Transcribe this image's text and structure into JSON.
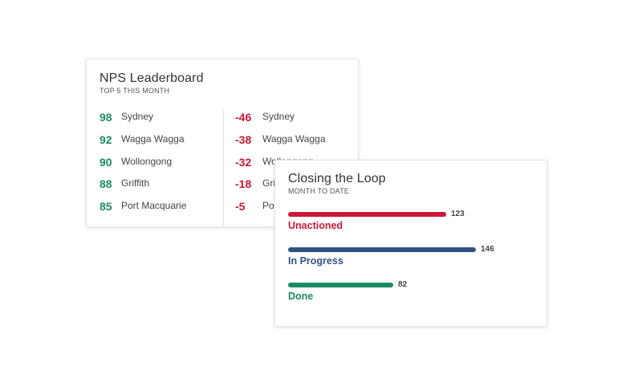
{
  "leaderboard": {
    "title": "NPS Leaderboard",
    "subtitle": "TOP 5 THIS MONTH",
    "top": [
      {
        "score": "98",
        "city": "Sydney"
      },
      {
        "score": "92",
        "city": "Wagga Wagga"
      },
      {
        "score": "90",
        "city": "Wollongong"
      },
      {
        "score": "88",
        "city": "Griffith"
      },
      {
        "score": "85",
        "city": "Port Macquarie"
      }
    ],
    "bottom": [
      {
        "score": "-46",
        "city": "Sydney"
      },
      {
        "score": "-38",
        "city": "Wagga Wagga"
      },
      {
        "score": "-32",
        "city": "Wollongong"
      },
      {
        "score": "-18",
        "city": "Griffith"
      },
      {
        "score": "-5",
        "city": "Port Macquarie"
      }
    ],
    "colors": {
      "positive": "#1a8c64",
      "negative": "#cc1838"
    }
  },
  "closing_loop": {
    "title": "Closing the Loop",
    "subtitle": "MONTH TO DATE",
    "items": [
      {
        "label": "Unactioned",
        "count": "123",
        "value": 123,
        "color": "#cc1838"
      },
      {
        "label": "In Progress",
        "count": "146",
        "value": 146,
        "color": "#2e5382"
      },
      {
        "label": "Done",
        "count": "82",
        "value": 82,
        "color": "#1a8c64"
      }
    ]
  }
}
